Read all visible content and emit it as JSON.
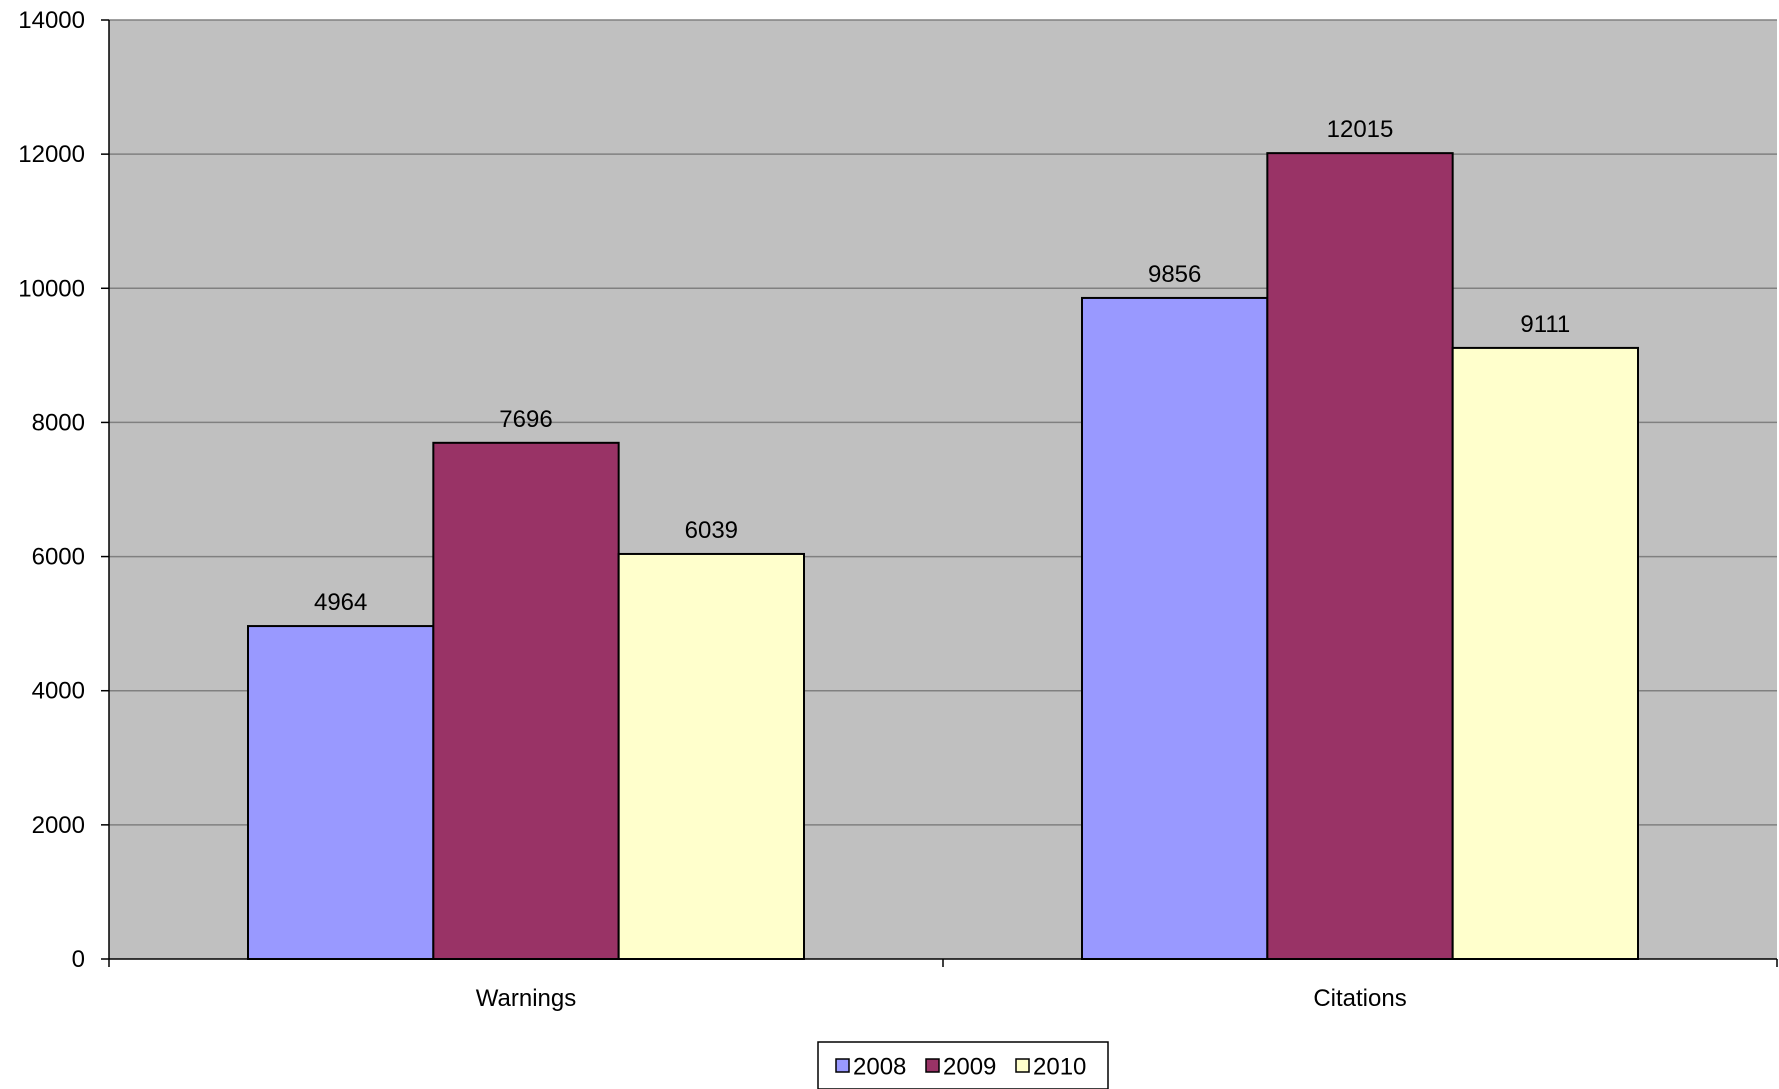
{
  "chart_data": {
    "type": "bar",
    "title": "",
    "xlabel": "",
    "ylabel": "",
    "categories": [
      "Warnings",
      "Citations"
    ],
    "series": [
      {
        "name": "2008",
        "values": [
          4964,
          9856
        ],
        "color": "#9999FF"
      },
      {
        "name": "2009",
        "values": [
          7696,
          12015
        ],
        "color": "#993366"
      },
      {
        "name": "2010",
        "values": [
          6039,
          9111
        ],
        "color": "#FFFFCC"
      }
    ],
    "ylim": [
      0,
      14000
    ],
    "yticks": [
      0,
      2000,
      4000,
      6000,
      8000,
      10000,
      12000,
      14000
    ],
    "grid": true,
    "plot_background": "#C0C0C0",
    "legend": "bottom-center",
    "data_labels": true
  }
}
